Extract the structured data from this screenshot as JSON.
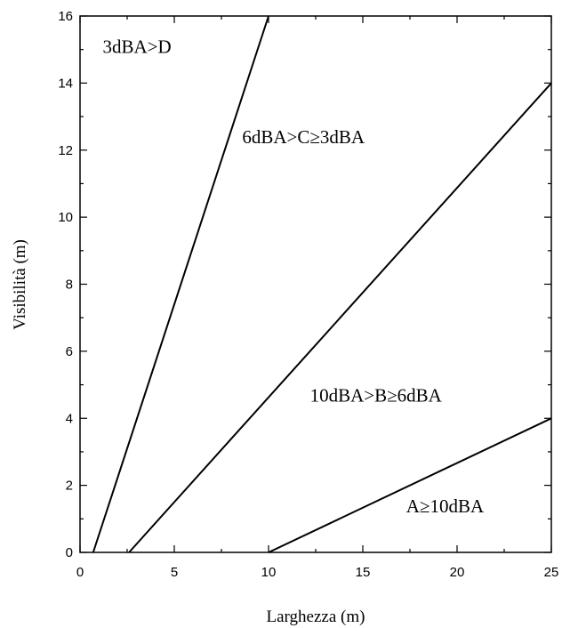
{
  "chart_data": {
    "type": "line",
    "title": "",
    "xlabel": "Larghezza (m)",
    "ylabel": "Visibilità (m)",
    "xlim": [
      0,
      25
    ],
    "ylim": [
      0,
      16
    ],
    "x_ticks": [
      0,
      5,
      10,
      15,
      20,
      25
    ],
    "y_ticks": [
      0,
      2,
      4,
      6,
      8,
      10,
      12,
      14,
      16
    ],
    "grid": false,
    "series": [
      {
        "points": [
          [
            0.7,
            0
          ],
          [
            10.0,
            16
          ]
        ]
      },
      {
        "points": [
          [
            2.6,
            0
          ],
          [
            25,
            14
          ]
        ]
      },
      {
        "points": [
          [
            10.0,
            0
          ],
          [
            25,
            4
          ]
        ]
      }
    ],
    "annotations": [
      {
        "text": "3dBA>D",
        "x": 1.2,
        "y": 14.9
      },
      {
        "text": "6dBA>C≥3dBA",
        "x": 8.6,
        "y": 12.2
      },
      {
        "text": "10dBA>B≥6dBA",
        "x": 12.2,
        "y": 4.5
      },
      {
        "text": "A≥10dBA",
        "x": 17.3,
        "y": 1.2
      }
    ]
  }
}
